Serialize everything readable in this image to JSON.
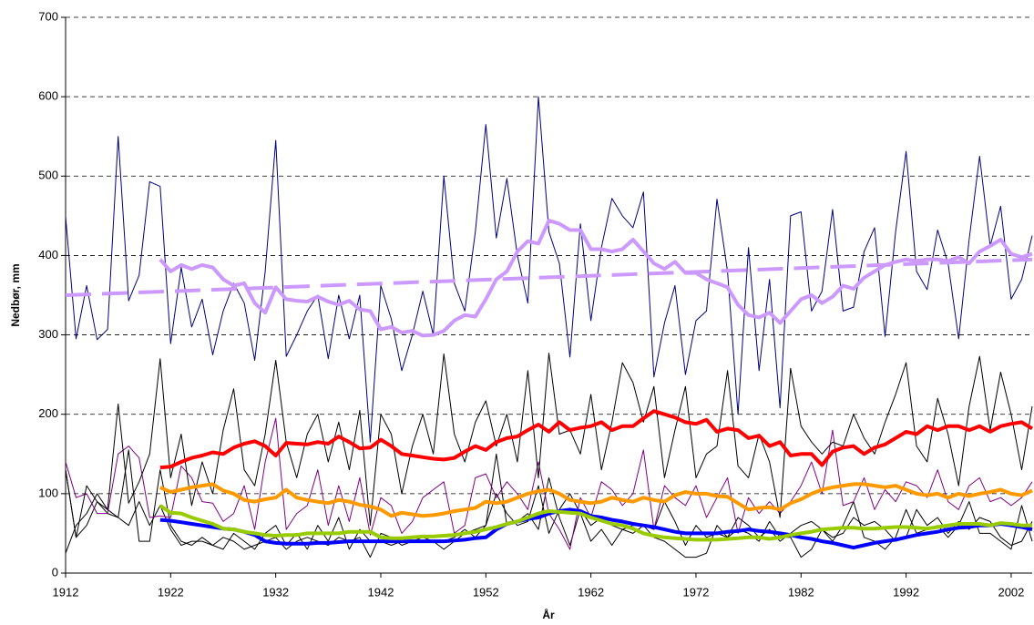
{
  "chart_data": {
    "type": "line",
    "x_label": "År",
    "y_label": "Nedbør, mm",
    "xlim": [
      1912,
      2004
    ],
    "ylim": [
      0,
      700
    ],
    "xticks": [
      1912,
      1922,
      1932,
      1942,
      1952,
      1962,
      1972,
      1982,
      1992,
      2002
    ],
    "yticks": [
      0,
      100,
      200,
      300,
      400,
      500,
      600,
      700
    ],
    "grid": true,
    "x": [
      1912,
      1913,
      1914,
      1915,
      1916,
      1917,
      1918,
      1919,
      1920,
      1921,
      1922,
      1923,
      1924,
      1925,
      1926,
      1927,
      1928,
      1929,
      1930,
      1931,
      1932,
      1933,
      1934,
      1935,
      1936,
      1937,
      1938,
      1939,
      1940,
      1941,
      1942,
      1943,
      1944,
      1945,
      1946,
      1947,
      1948,
      1949,
      1950,
      1951,
      1952,
      1953,
      1954,
      1955,
      1956,
      1957,
      1958,
      1959,
      1960,
      1961,
      1962,
      1963,
      1964,
      1965,
      1966,
      1967,
      1968,
      1969,
      1970,
      1971,
      1972,
      1973,
      1974,
      1975,
      1976,
      1977,
      1978,
      1979,
      1980,
      1981,
      1982,
      1983,
      1984,
      1985,
      1986,
      1987,
      1988,
      1989,
      1990,
      1991,
      1992,
      1993,
      1994,
      1995,
      1996,
      1997,
      1998,
      1999,
      2000,
      2001,
      2002,
      2003,
      2004
    ],
    "series": [
      {
        "color": "#000000",
        "width": 1,
        "values": [
          130,
          45,
          60,
          90,
          75,
          70,
          60,
          90,
          60,
          85,
          55,
          35,
          40,
          40,
          35,
          30,
          50,
          40,
          30,
          50,
          60,
          35,
          50,
          30,
          60,
          40,
          70,
          30,
          55,
          40,
          40,
          35,
          40,
          40,
          40,
          40,
          40,
          45,
          55,
          45,
          60,
          100,
          75,
          60,
          65,
          110,
          50,
          80,
          100,
          75,
          40,
          55,
          35,
          55,
          60,
          60,
          55,
          90,
          65,
          35,
          60,
          45,
          50,
          45,
          70,
          60,
          45,
          55,
          40,
          50,
          60,
          65,
          55,
          45,
          50,
          70,
          60,
          65,
          55,
          40,
          45,
          80,
          60,
          70,
          50,
          65,
          55,
          70,
          65,
          45,
          35,
          40,
          65
        ]
      },
      {
        "color": "#000000",
        "width": 1,
        "values": [
          25,
          60,
          75,
          100,
          80,
          70,
          155,
          40,
          40,
          130,
          60,
          40,
          35,
          45,
          35,
          45,
          40,
          30,
          35,
          40,
          45,
          30,
          40,
          45,
          40,
          35,
          45,
          40,
          45,
          20,
          50,
          45,
          35,
          40,
          45,
          40,
          30,
          40,
          50,
          55,
          60,
          150,
          60,
          65,
          75,
          55,
          120,
          70,
          35,
          80,
          60,
          70,
          60,
          55,
          50,
          60,
          45,
          40,
          30,
          20,
          20,
          25,
          60,
          45,
          55,
          50,
          40,
          65,
          45,
          45,
          20,
          30,
          55,
          40,
          60,
          90,
          45,
          40,
          30,
          45,
          80,
          50,
          55,
          60,
          45,
          60,
          90,
          50,
          50,
          40,
          30,
          85,
          40
        ]
      },
      {
        "color": "#800080",
        "width": 1,
        "values": [
          140,
          95,
          100,
          75,
          75,
          150,
          160,
          145,
          70,
          72,
          70,
          135,
          120,
          90,
          88,
          65,
          75,
          110,
          55,
          140,
          195,
          55,
          75,
          85,
          130,
          60,
          110,
          65,
          120,
          48,
          95,
          85,
          50,
          65,
          95,
          105,
          115,
          50,
          60,
          120,
          125,
          95,
          115,
          100,
          80,
          140,
          75,
          55,
          30,
          95,
          70,
          115,
          105,
          85,
          100,
          155,
          55,
          110,
          95,
          85,
          110,
          70,
          95,
          120,
          50,
          95,
          75,
          90,
          75,
          90,
          110,
          140,
          100,
          180,
          85,
          90,
          120,
          80,
          105,
          90,
          115,
          110,
          95,
          130,
          90,
          80,
          110,
          120,
          90,
          95,
          85,
          95,
          115
        ]
      },
      {
        "color": "#000000",
        "width": 1,
        "values": [
          130,
          45,
          110,
          90,
          80,
          213,
          88,
          115,
          150,
          270,
          120,
          175,
          85,
          140,
          100,
          180,
          232,
          130,
          110,
          175,
          268,
          165,
          120,
          175,
          200,
          140,
          190,
          130,
          205,
          60,
          200,
          175,
          100,
          160,
          200,
          150,
          276,
          175,
          140,
          190,
          217,
          160,
          200,
          140,
          255,
          120,
          277,
          175,
          180,
          150,
          225,
          130,
          190,
          265,
          240,
          190,
          235,
          120,
          180,
          235,
          120,
          150,
          160,
          255,
          135,
          120,
          175,
          140,
          70,
          258,
          185,
          165,
          150,
          165,
          160,
          200,
          170,
          150,
          190,
          225,
          265,
          160,
          140,
          220,
          175,
          110,
          210,
          273,
          180,
          253,
          200,
          130,
          210
        ]
      },
      {
        "color": "#000080",
        "width": 1,
        "values": [
          449,
          295,
          362,
          294,
          307,
          550,
          343,
          375,
          493,
          487,
          289,
          385,
          310,
          345,
          275,
          330,
          365,
          340,
          268,
          380,
          545,
          273,
          300,
          330,
          350,
          270,
          350,
          295,
          350,
          165,
          362,
          320,
          255,
          300,
          355,
          300,
          500,
          365,
          330,
          430,
          565,
          422,
          497,
          400,
          340,
          600,
          430,
          390,
          272,
          440,
          318,
          410,
          472,
          450,
          435,
          480,
          247,
          315,
          362,
          250,
          318,
          330,
          471,
          380,
          200,
          410,
          255,
          370,
          208,
          450,
          455,
          330,
          355,
          458,
          330,
          335,
          405,
          435,
          298,
          430,
          531,
          380,
          357,
          432,
          390,
          295,
          420,
          525,
          412,
          462,
          345,
          370,
          425
        ]
      },
      {
        "color": "#cc99ff",
        "width": 4,
        "dash": "28 12",
        "x": [
          1912,
          2004
        ],
        "values": [
          350,
          395
        ]
      },
      {
        "color": "#cc99ff",
        "width": 4,
        "values": [
          null,
          null,
          null,
          null,
          null,
          null,
          null,
          null,
          null,
          395,
          380,
          388,
          383,
          388,
          385,
          370,
          362,
          365,
          340,
          328,
          360,
          345,
          343,
          342,
          348,
          342,
          338,
          343,
          332,
          330,
          307,
          310,
          303,
          305,
          299,
          300,
          305,
          318,
          325,
          323,
          345,
          370,
          380,
          405,
          418,
          415,
          444,
          440,
          432,
          432,
          408,
          408,
          405,
          408,
          420,
          405,
          390,
          383,
          392,
          378,
          378,
          370,
          365,
          360,
          338,
          325,
          322,
          328,
          315,
          330,
          345,
          350,
          340,
          348,
          362,
          358,
          372,
          380,
          388,
          392,
          395,
          393,
          395,
          395,
          393,
          398,
          390,
          405,
          412,
          420,
          402,
          398,
          402
        ]
      },
      {
        "color": "#ff0000",
        "width": 4,
        "values": [
          null,
          null,
          null,
          null,
          null,
          null,
          null,
          null,
          null,
          133,
          134,
          140,
          145,
          148,
          152,
          150,
          158,
          163,
          166,
          160,
          148,
          164,
          163,
          162,
          165,
          163,
          172,
          165,
          157,
          158,
          168,
          160,
          150,
          148,
          146,
          144,
          143,
          145,
          153,
          160,
          155,
          165,
          170,
          172,
          180,
          187,
          178,
          190,
          180,
          183,
          185,
          190,
          180,
          185,
          185,
          195,
          204,
          200,
          196,
          190,
          188,
          193,
          178,
          182,
          180,
          170,
          173,
          160,
          165,
          148,
          150,
          150,
          136,
          153,
          158,
          160,
          150,
          158,
          162,
          170,
          178,
          175,
          185,
          180,
          185,
          185,
          180,
          185,
          178,
          185,
          188,
          190,
          182
        ]
      },
      {
        "color": "#ff9900",
        "width": 4,
        "values": [
          null,
          null,
          null,
          null,
          null,
          null,
          null,
          null,
          null,
          108,
          102,
          105,
          108,
          110,
          112,
          104,
          100,
          92,
          90,
          93,
          95,
          105,
          95,
          92,
          90,
          88,
          92,
          90,
          86,
          84,
          80,
          72,
          76,
          74,
          72,
          73,
          75,
          78,
          80,
          82,
          90,
          88,
          90,
          95,
          100,
          103,
          105,
          100,
          92,
          90,
          88,
          90,
          95,
          92,
          90,
          95,
          92,
          90,
          98,
          102,
          100,
          100,
          97,
          96,
          88,
          80,
          82,
          83,
          80,
          88,
          93,
          100,
          105,
          108,
          110,
          112,
          112,
          110,
          108,
          110,
          105,
          100,
          98,
          100,
          95,
          100,
          97,
          100,
          102,
          105,
          100,
          98,
          104
        ]
      },
      {
        "color": "#0000ff",
        "width": 4,
        "values": [
          null,
          null,
          null,
          null,
          null,
          null,
          null,
          null,
          null,
          67,
          66,
          64,
          62,
          60,
          58,
          56,
          55,
          52,
          48,
          40,
          38,
          37,
          37,
          37,
          38,
          38,
          39,
          40,
          40,
          40,
          40,
          40,
          40,
          40,
          40,
          40,
          40,
          41,
          42,
          44,
          45,
          55,
          62,
          65,
          68,
          70,
          75,
          78,
          80,
          78,
          72,
          70,
          67,
          65,
          62,
          60,
          58,
          55,
          52,
          50,
          50,
          50,
          50,
          52,
          53,
          55,
          53,
          52,
          50,
          48,
          45,
          43,
          40,
          38,
          35,
          32,
          35,
          38,
          40,
          42,
          45,
          48,
          50,
          52,
          55,
          57,
          58,
          60,
          60,
          62,
          60,
          58,
          55
        ]
      },
      {
        "color": "#99cc00",
        "width": 4,
        "values": [
          null,
          null,
          null,
          null,
          null,
          null,
          null,
          null,
          null,
          85,
          76,
          75,
          70,
          66,
          62,
          56,
          55,
          52,
          50,
          48,
          47,
          48,
          48,
          50,
          50,
          50,
          50,
          52,
          52,
          52,
          45,
          44,
          44,
          45,
          46,
          46,
          47,
          48,
          50,
          52,
          55,
          58,
          62,
          65,
          70,
          75,
          78,
          77,
          76,
          75,
          70,
          66,
          62,
          60,
          56,
          50,
          47,
          45,
          44,
          43,
          42,
          42,
          42,
          43,
          44,
          45,
          45,
          43,
          45,
          48,
          50,
          52,
          55,
          56,
          57,
          57,
          56,
          56,
          57,
          58,
          58,
          57,
          56,
          58,
          60,
          62,
          62,
          62,
          60,
          63,
          62,
          60,
          60
        ]
      }
    ]
  }
}
